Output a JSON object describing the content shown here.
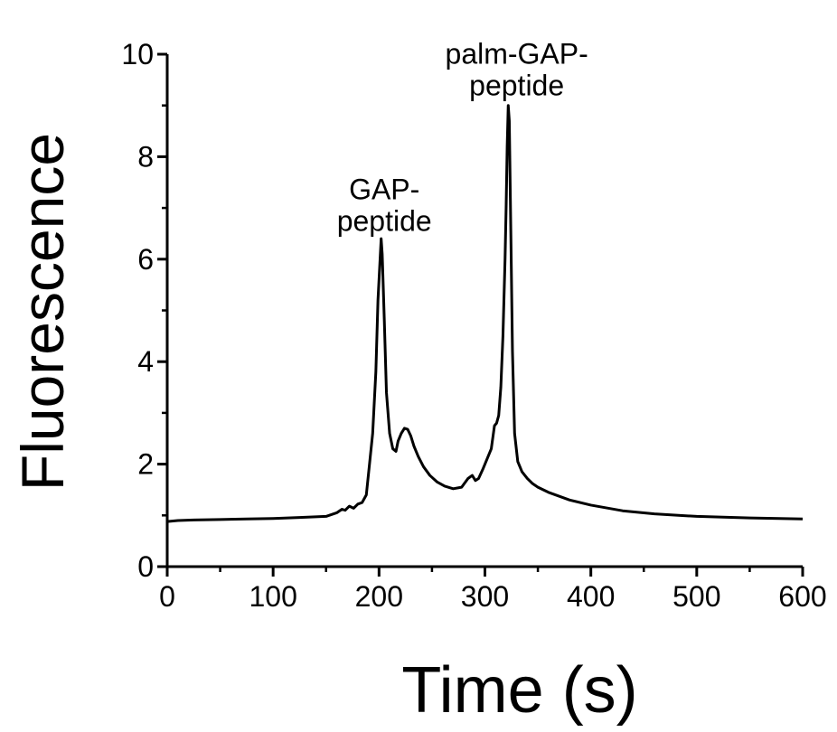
{
  "chart_data": {
    "type": "line",
    "xlabel": "Time (s)",
    "ylabel": "Fluorescence",
    "xlim": [
      0,
      600
    ],
    "ylim": [
      0,
      10
    ],
    "xticks": [
      0,
      100,
      200,
      300,
      400,
      500,
      600
    ],
    "yticks": [
      0,
      2,
      4,
      6,
      8,
      10
    ],
    "grid": false,
    "legend": "none",
    "line_color": "#000000",
    "series": [
      {
        "x": [
          0,
          10,
          25,
          50,
          75,
          100,
          125,
          150,
          160,
          165,
          168,
          172,
          176,
          180,
          184,
          188,
          191,
          194,
          197,
          199,
          201,
          202,
          203,
          205,
          207,
          210,
          213,
          216,
          218,
          221,
          224,
          227,
          230,
          233,
          237,
          242,
          248,
          255,
          262,
          270,
          278,
          284,
          288,
          291,
          294,
          298,
          302,
          306,
          309,
          311,
          313,
          315,
          317,
          319,
          320,
          321,
          322,
          323,
          324,
          326,
          328,
          331,
          335,
          340,
          345,
          350,
          360,
          380,
          400,
          430,
          460,
          500,
          550,
          600
        ],
        "y": [
          0.88,
          0.9,
          0.91,
          0.92,
          0.93,
          0.94,
          0.96,
          0.98,
          1.05,
          1.12,
          1.1,
          1.18,
          1.14,
          1.22,
          1.25,
          1.4,
          2.0,
          2.6,
          3.8,
          5.2,
          6.0,
          6.4,
          6.1,
          4.8,
          3.4,
          2.6,
          2.3,
          2.25,
          2.45,
          2.6,
          2.7,
          2.68,
          2.55,
          2.35,
          2.15,
          1.95,
          1.78,
          1.65,
          1.57,
          1.52,
          1.55,
          1.72,
          1.78,
          1.68,
          1.72,
          1.9,
          2.1,
          2.3,
          2.75,
          2.8,
          2.95,
          3.5,
          4.5,
          6.0,
          7.0,
          8.2,
          9.0,
          8.7,
          7.2,
          4.2,
          2.6,
          2.05,
          1.85,
          1.72,
          1.62,
          1.55,
          1.45,
          1.3,
          1.2,
          1.09,
          1.03,
          0.98,
          0.95,
          0.93
        ]
      }
    ],
    "annotations": [
      {
        "lines": [
          "GAP-",
          "peptide"
        ],
        "x": 205,
        "y": 6.55
      },
      {
        "lines": [
          "palm-GAP-",
          "peptide"
        ],
        "x": 330,
        "y": 9.2
      }
    ]
  }
}
